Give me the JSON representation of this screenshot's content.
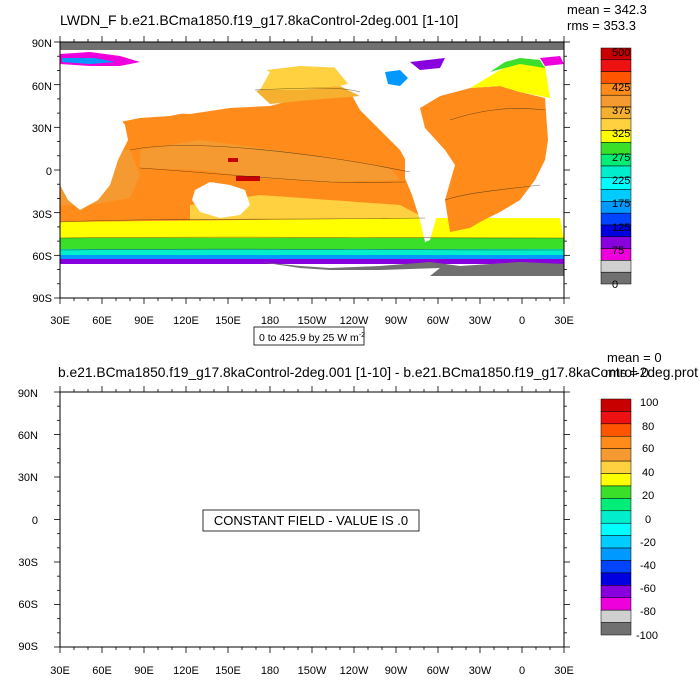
{
  "chart_data": [
    {
      "type": "heatmap",
      "title": "LWDN_F b.e21.BCma1850.f19_g17.8kaControl-2deg.001 [1-10]",
      "stats": [
        "mean = 342.3",
        "rms = 353.3"
      ],
      "range_label": "0 to 425.9 by 25  W m",
      "range_label_sup": "-2",
      "x_ticks": [
        "30E",
        "60E",
        "90E",
        "120E",
        "150E",
        "180",
        "150W",
        "120W",
        "90W",
        "60W",
        "30W",
        "0",
        "30E"
      ],
      "y_ticks": [
        "90N",
        "60N",
        "30N",
        "0",
        "30S",
        "60S",
        "90S"
      ],
      "colorbar": {
        "labels": [
          "500",
          "425",
          "375",
          "325",
          "275",
          "225",
          "175",
          "125",
          "75",
          "0"
        ],
        "colors": [
          "#c80000",
          "#ee1111",
          "#ff5500",
          "#ff8c1a",
          "#f59a30",
          "#f5b030",
          "#ffd040",
          "#ffff00",
          "#3adf2a",
          "#00ee77",
          "#00eecc",
          "#00ffff",
          "#00ccff",
          "#0099ff",
          "#0044ff",
          "#0000e0",
          "#8800dd",
          "#ee00dd",
          "#d0d0d0",
          "#707070"
        ]
      }
    },
    {
      "type": "heatmap",
      "title": "b.e21.BCma1850.f19_g17.8kaControl-2deg.001 [1-10] - b.e21.BCma1850.f19_g17.8kaControl-2deg.prot",
      "stats": [
        "mean = 0",
        "rms = 0"
      ],
      "message": "CONSTANT FIELD - VALUE IS .0",
      "x_ticks": [
        "30E",
        "60E",
        "90E",
        "120E",
        "150E",
        "180",
        "150W",
        "120W",
        "90W",
        "60W",
        "30W",
        "0",
        "30E"
      ],
      "y_ticks": [
        "90N",
        "60N",
        "30N",
        "0",
        "30S",
        "60S",
        "90S"
      ],
      "colorbar": {
        "labels": [
          "100",
          "80",
          "60",
          "40",
          "20",
          "0",
          "-20",
          "-40",
          "-60",
          "-80",
          "-100"
        ],
        "colors": [
          "#c80000",
          "#ee1111",
          "#ff5500",
          "#ff8c1a",
          "#f59a30",
          "#ffd040",
          "#ffff00",
          "#3adf2a",
          "#00ee77",
          "#00eecc",
          "#00ffff",
          "#00ccff",
          "#0099ff",
          "#0044ff",
          "#0000e0",
          "#8800dd",
          "#ee00dd",
          "#d0d0d0",
          "#707070"
        ]
      }
    }
  ]
}
